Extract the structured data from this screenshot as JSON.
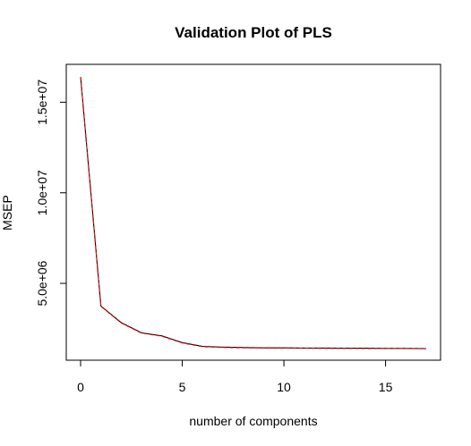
{
  "chart_data": {
    "type": "line",
    "title": "Validation Plot of PLS",
    "xlabel": "number of components",
    "ylabel": "MSEP",
    "xlim": [
      0,
      17
    ],
    "ylim": [
      1400000,
      16400000
    ],
    "x_ticks": [
      0,
      5,
      10,
      15
    ],
    "x_tick_labels": [
      "0",
      "5",
      "10",
      "15"
    ],
    "y_ticks": [
      5000000,
      10000000,
      15000000
    ],
    "y_tick_labels": [
      "5.0e+06",
      "1.0e+07",
      "1.5e+07"
    ],
    "grid": false,
    "legend": "none",
    "x": [
      0,
      1,
      2,
      3,
      4,
      5,
      6,
      7,
      8,
      9,
      10,
      11,
      12,
      13,
      14,
      15,
      16,
      17
    ],
    "series": [
      {
        "color": "#000000",
        "style": "solid",
        "values": [
          16400000,
          3750000,
          2830000,
          2270000,
          2100000,
          1730000,
          1520000,
          1480000,
          1460000,
          1440000,
          1440000,
          1430000,
          1430000,
          1420000,
          1420000,
          1410000,
          1410000,
          1400000
        ]
      },
      {
        "color": "#ff0000",
        "style": "dashed",
        "values": [
          16400000,
          3730000,
          2810000,
          2250000,
          2080000,
          1710000,
          1500000,
          1460000,
          1440000,
          1430000,
          1420000,
          1420000,
          1410000,
          1410000,
          1400000,
          1400000,
          1400000,
          1390000
        ]
      }
    ]
  }
}
